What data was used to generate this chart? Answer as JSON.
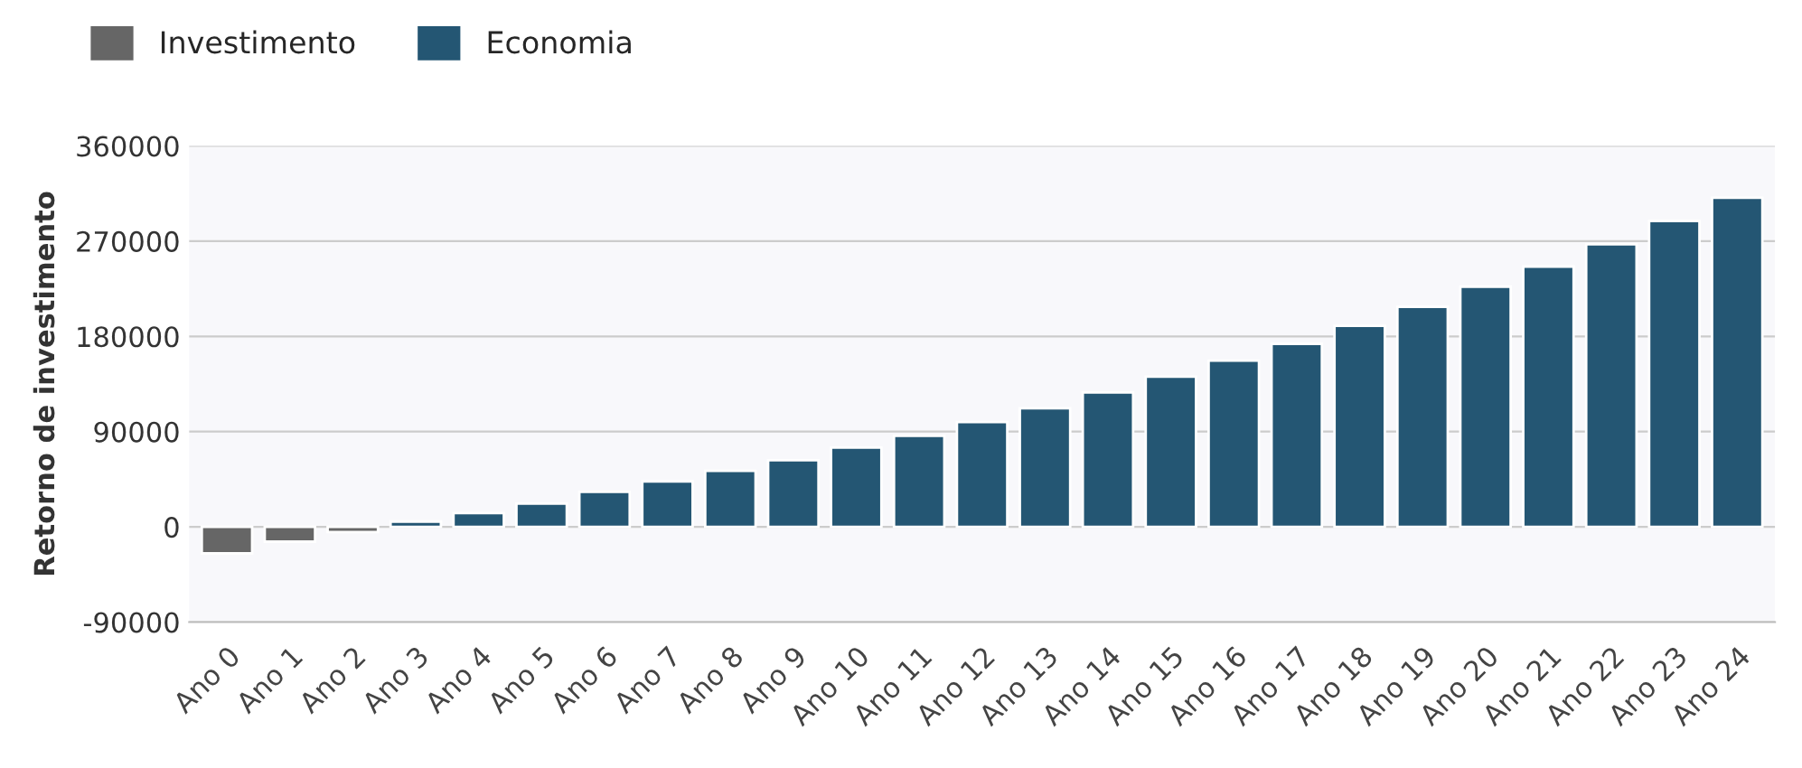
{
  "chart_data": {
    "type": "bar",
    "ylabel": "Retorno de investimento",
    "categories": [
      "Ano 0",
      "Ano 1",
      "Ano 2",
      "Ano 3",
      "Ano 4",
      "Ano 5",
      "Ano 6",
      "Ano 7",
      "Ano 8",
      "Ano 9",
      "Ano 10",
      "Ano 11",
      "Ano 12",
      "Ano 13",
      "Ano 14",
      "Ano 15",
      "Ano 16",
      "Ano 17",
      "Ano 18",
      "Ano 19",
      "Ano 20",
      "Ano 21",
      "Ano 22",
      "Ano 23",
      "Ano 24"
    ],
    "series": [
      {
        "name": "Investimento",
        "color": "#666666",
        "values": [
          -25000,
          -14000,
          -5000,
          null,
          null,
          null,
          null,
          null,
          null,
          null,
          null,
          null,
          null,
          null,
          null,
          null,
          null,
          null,
          null,
          null,
          null,
          null,
          null,
          null,
          null
        ]
      },
      {
        "name": "Economia",
        "color": "#245673",
        "values": [
          null,
          null,
          null,
          5000,
          13000,
          22000,
          33000,
          43000,
          53000,
          63000,
          75000,
          86000,
          99000,
          112000,
          127000,
          142000,
          157000,
          173000,
          190000,
          208000,
          227000,
          246000,
          267000,
          289000,
          311000
        ]
      }
    ],
    "ylim": [
      -90000,
      360000
    ],
    "yticks": [
      -90000,
      0,
      90000,
      180000,
      270000,
      360000
    ],
    "grid": "y",
    "legend": "top left"
  }
}
